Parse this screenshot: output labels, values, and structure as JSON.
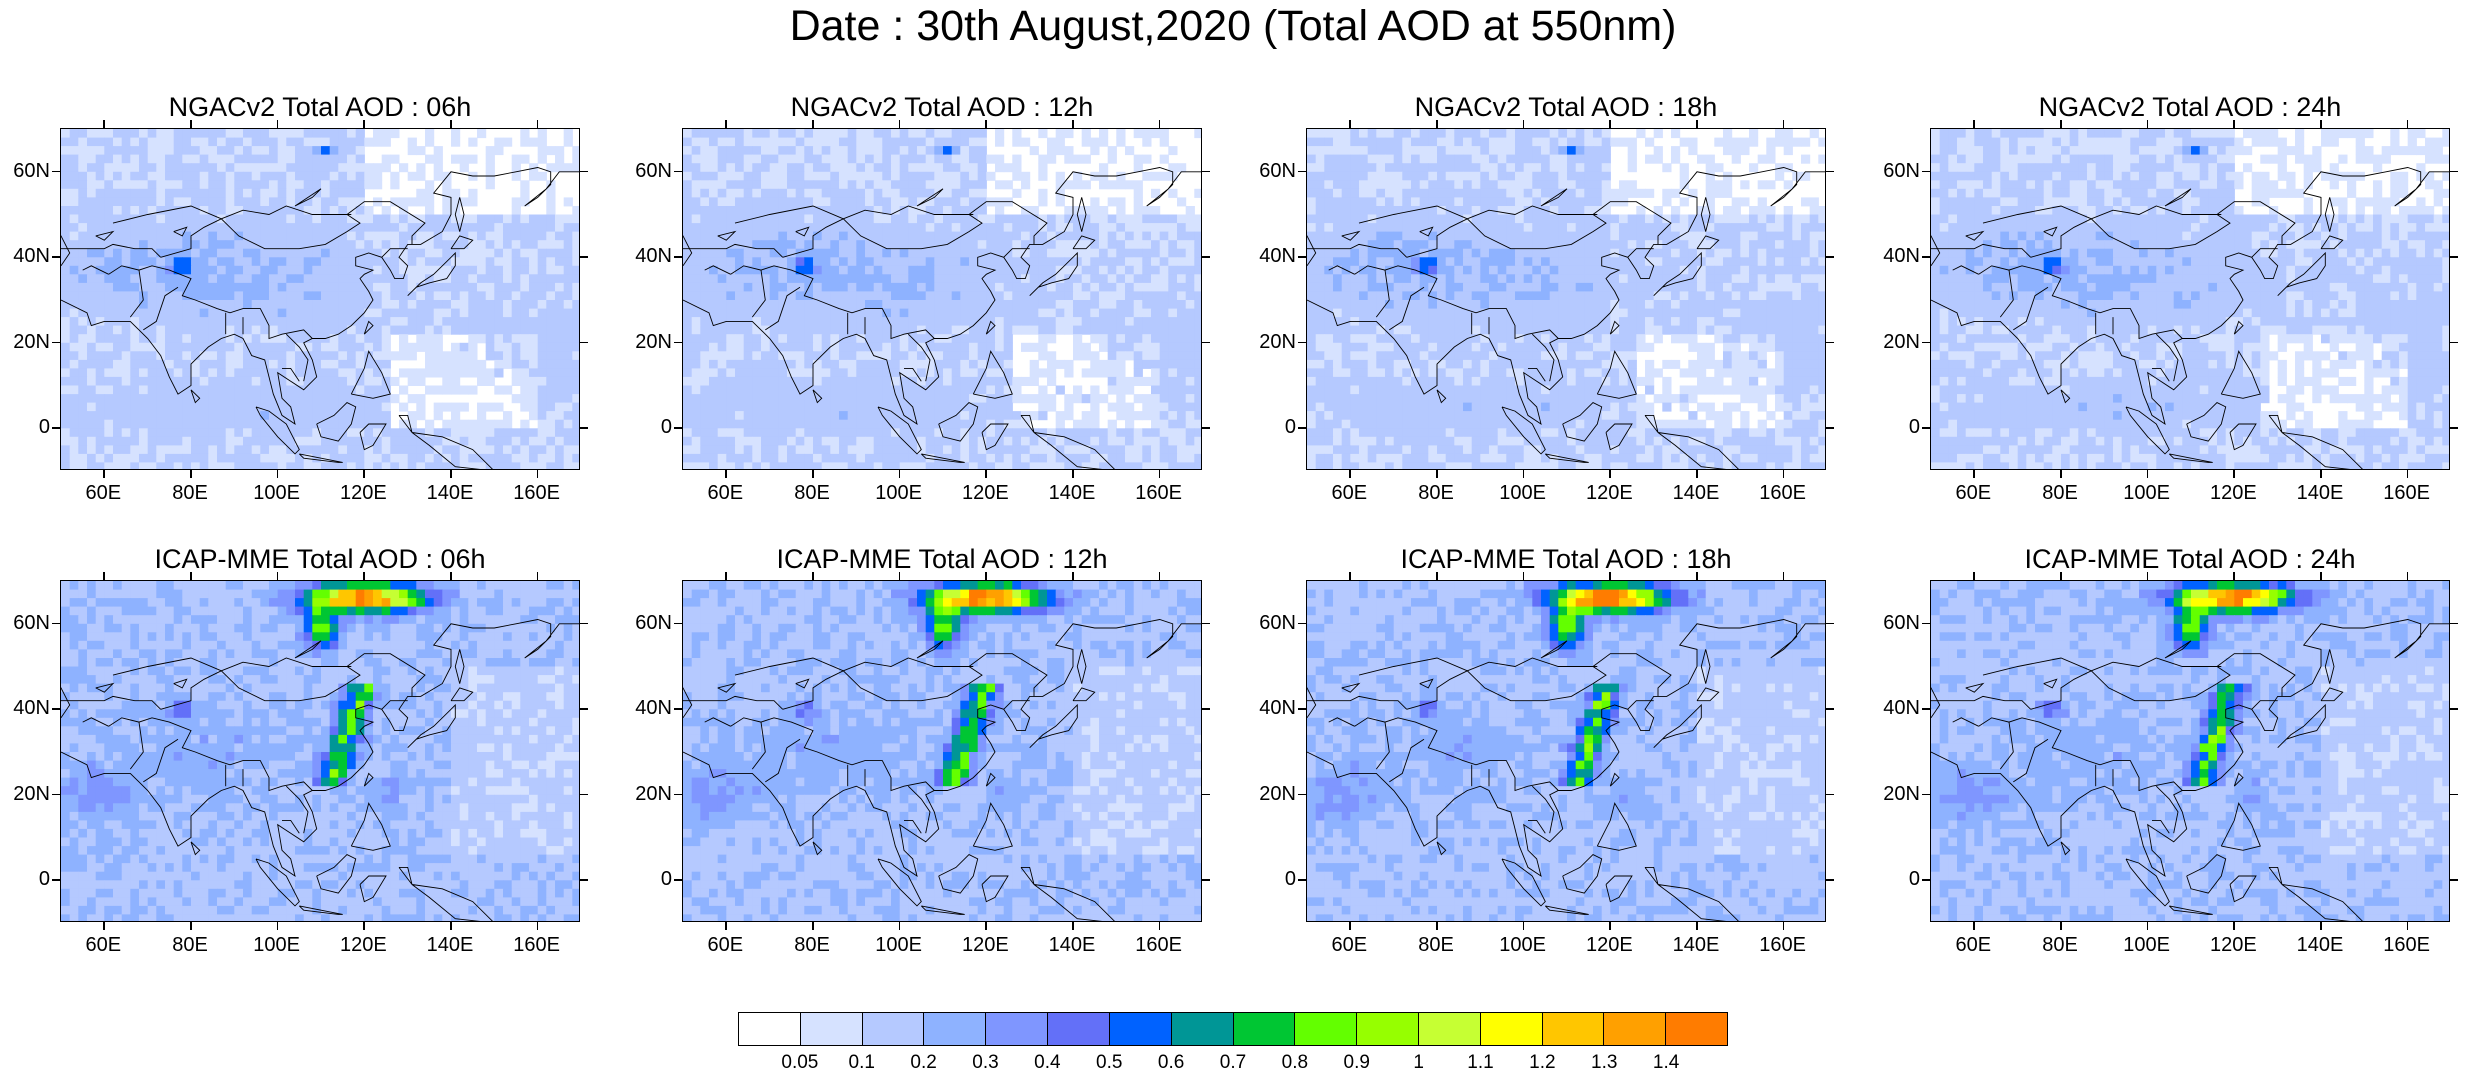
{
  "title": "Date : 30th August,2020 (Total AOD at 550nm)",
  "panels": [
    {
      "title": "NGACv2 Total AOD : 06h",
      "model": "ngac",
      "hour": 6
    },
    {
      "title": "NGACv2 Total AOD : 12h",
      "model": "ngac",
      "hour": 12
    },
    {
      "title": "NGACv2 Total AOD : 18h",
      "model": "ngac",
      "hour": 18
    },
    {
      "title": "NGACv2 Total AOD : 24h",
      "model": "ngac",
      "hour": 24
    },
    {
      "title": "ICAP-MME Total AOD : 06h",
      "model": "icap",
      "hour": 6
    },
    {
      "title": "ICAP-MME Total AOD : 12h",
      "model": "icap",
      "hour": 12
    },
    {
      "title": "ICAP-MME Total AOD : 18h",
      "model": "icap",
      "hour": 18
    },
    {
      "title": "ICAP-MME Total AOD : 24h",
      "model": "icap",
      "hour": 24
    }
  ],
  "map": {
    "lat_labels": [
      "60N",
      "40N",
      "20N",
      "0"
    ],
    "lat_values": [
      60,
      40,
      20,
      0
    ],
    "lat_range": [
      -10,
      70
    ],
    "lon_labels": [
      "60E",
      "80E",
      "100E",
      "120E",
      "140E",
      "160E"
    ],
    "lon_values": [
      60,
      80,
      100,
      120,
      140,
      160
    ],
    "lon_range": [
      50,
      170
    ]
  },
  "colorbar": {
    "labels": [
      "0.05",
      "0.1",
      "0.2",
      "0.3",
      "0.4",
      "0.5",
      "0.6",
      "0.7",
      "0.8",
      "0.9",
      "1",
      "1.1",
      "1.2",
      "1.3",
      "1.4"
    ],
    "colors": [
      "#ffffff",
      "#d6e2ff",
      "#b5c9ff",
      "#8eb2ff",
      "#7f96ff",
      "#6370f8",
      "#0062ff",
      "#009696",
      "#00c633",
      "#63ff00",
      "#96ff00",
      "#c6ff33",
      "#ffff00",
      "#ffc600",
      "#ffa000",
      "#ff7c00",
      "#ff1900"
    ]
  }
}
